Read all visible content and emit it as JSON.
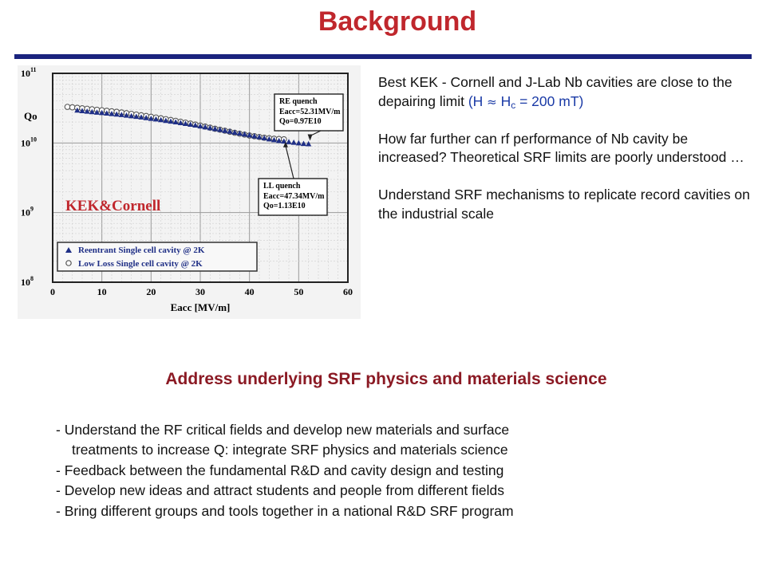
{
  "page": {
    "title": "Background"
  },
  "side_text": {
    "p1_main": "Best KEK - Cornell and J-Lab Nb cavities are close to the depairing limit ",
    "p1_paren_open": "(H ",
    "p1_approx": "≈",
    "p1_h": " H",
    "p1_sub": "c",
    "p1_paren_rest": " = 200 mT)",
    "p2": "How far further can rf performance of  Nb cavity be increased?  Theoretical SRF limits are poorly understood …",
    "p3": "Understand SRF mechanisms to replicate record cavities on the industrial scale"
  },
  "section_heading": "Address underlying SRF physics and materials science",
  "bullets": [
    "-  Understand the RF critical fields and develop new materials and surface",
    "treatments to increase Q: integrate SRF physics and materials science",
    "-  Feedback between the fundamental R&D and cavity design and testing",
    "-  Develop new ideas and attract students and people from different fields",
    "-  Bring different groups and tools together in a national R&D SRF program"
  ],
  "chart_data": {
    "type": "scatter",
    "xlabel": "Eacc [MV/m]",
    "ylabel": "Qo",
    "xlim": [
      0,
      60
    ],
    "ylim": [
      100000000.0,
      100000000000.0
    ],
    "y_scale": "log",
    "x_ticks": [
      "0",
      "10",
      "20",
      "30",
      "40",
      "50",
      "60"
    ],
    "y_ticks": [
      "10^8",
      "10^9",
      "10^10",
      "10^11"
    ],
    "grid": true,
    "brand_label": "KEK&Cornell",
    "legend_position": "bottom-left",
    "series": [
      {
        "name": "Reentrant Single cell cavity @ 2K",
        "marker": "triangle",
        "color": "#1f2f86",
        "x": [
          5,
          6,
          7,
          8,
          9,
          10,
          11,
          12,
          13,
          14,
          15,
          16,
          17,
          18,
          19,
          20,
          21,
          22,
          23,
          24,
          25,
          26,
          27,
          28,
          29,
          30,
          31,
          32,
          33,
          34,
          35,
          36,
          37,
          38,
          39,
          40,
          41,
          42,
          43,
          44,
          45,
          46,
          47,
          48,
          49,
          50,
          51,
          52
        ],
        "y": [
          29500000000.0,
          29000000000.0,
          28500000000.0,
          28000000000.0,
          27600000000.0,
          27200000000.0,
          26800000000.0,
          26300000000.0,
          25900000000.0,
          25500000000.0,
          25000000000.0,
          24500000000.0,
          24000000000.0,
          23500000000.0,
          23000000000.0,
          22500000000.0,
          22000000000.0,
          21500000000.0,
          21000000000.0,
          20500000000.0,
          20000000000.0,
          19500000000.0,
          19000000000.0,
          18500000000.0,
          18000000000.0,
          17500000000.0,
          17000000000.0,
          16500000000.0,
          16000000000.0,
          15600000000.0,
          15100000000.0,
          14700000000.0,
          14200000000.0,
          13800000000.0,
          13400000000.0,
          13000000000.0,
          12600000000.0,
          12200000000.0,
          11800000000.0,
          11400000000.0,
          11100000000.0,
          10800000000.0,
          10600000000.0,
          10400000000.0,
          10200000000.0,
          10000000000.0,
          9800000000.0,
          9700000000.0
        ]
      },
      {
        "name": "Low Loss  Single cell cavity @ 2K",
        "marker": "circle",
        "color": "#555555",
        "x": [
          3,
          4,
          5,
          6,
          7,
          8,
          9,
          10,
          11,
          12,
          13,
          14,
          15,
          16,
          17,
          18,
          19,
          20,
          21,
          22,
          23,
          24,
          25,
          26,
          27,
          28,
          29,
          30,
          31,
          32,
          33,
          34,
          35,
          36,
          37,
          38,
          39,
          40,
          41,
          42,
          43,
          44,
          45,
          46,
          47
        ],
        "y": [
          33000000000.0,
          32500000000.0,
          32000000000.0,
          31500000000.0,
          31000000000.0,
          30500000000.0,
          30000000000.0,
          29500000000.0,
          29000000000.0,
          28500000000.0,
          28000000000.0,
          27400000000.0,
          26800000000.0,
          26200000000.0,
          25600000000.0,
          25000000000.0,
          24400000000.0,
          23800000000.0,
          23200000000.0,
          22600000000.0,
          22000000000.0,
          21400000000.0,
          20800000000.0,
          20200000000.0,
          19600000000.0,
          19000000000.0,
          18400000000.0,
          17800000000.0,
          17200000000.0,
          16600000000.0,
          16000000000.0,
          15500000000.0,
          15000000000.0,
          14500000000.0,
          14000000000.0,
          13600000000.0,
          13200000000.0,
          12800000000.0,
          12500000000.0,
          12200000000.0,
          11900000000.0,
          11700000000.0,
          11500000000.0,
          11400000000.0,
          11300000000.0
        ]
      }
    ],
    "annotations": [
      {
        "title": "RE quench",
        "lines": [
          "Eacc=52.31MV/m",
          "Qo=0.97E10"
        ],
        "x": 52.31,
        "y": 9700000000.0
      },
      {
        "title": "LL quench",
        "lines": [
          "Eacc=47.34MV/m",
          "Qo=1.13E10"
        ],
        "x": 47.34,
        "y": 11300000000.0
      }
    ]
  }
}
